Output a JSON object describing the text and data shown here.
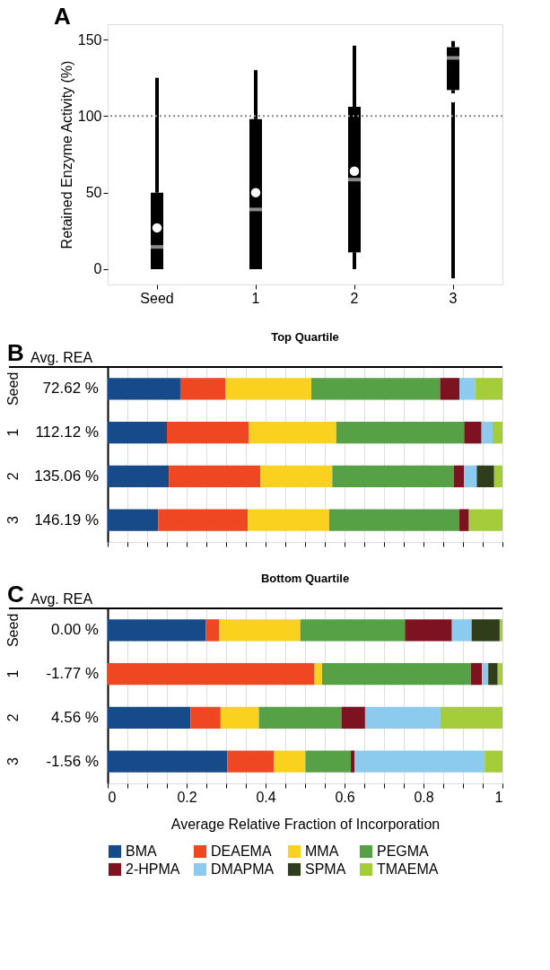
{
  "chart_data": [
    {
      "type": "box",
      "categories": [
        "Seed",
        "1",
        "2",
        "3"
      ],
      "ylabel": "Retained Enzyme Activity (%)",
      "ylim": [
        -10,
        160
      ],
      "yticks": [
        0,
        50,
        100,
        150
      ],
      "grid": false,
      "annotations": [
        "A"
      ],
      "ref_lines": [
        {
          "axis": "y",
          "value": 100,
          "line_style": "dotted",
          "color": "#888888"
        }
      ],
      "series": [
        {
          "color": "#000000",
          "boxes": [
            {
              "low": 0,
              "q1": 0,
              "median": 14.5,
              "q3": 50,
              "high": 125,
              "mean": 27
            },
            {
              "low": 0,
              "q1": 0,
              "median": 39,
              "q3": 98,
              "high": 130,
              "mean": 50
            },
            {
              "low": 0,
              "q1": 11,
              "median": 58.5,
              "q3": 106,
              "high": 146,
              "mean": 64
            },
            {
              "low": -6,
              "q1": 117,
              "median": 138,
              "q3": 145,
              "high": 149,
              "mean": 112
            }
          ]
        }
      ]
    },
    {
      "type": "bar",
      "orientation": "horizontal",
      "stacked": true,
      "title": "Top Quartile",
      "categories": [
        "Seed",
        "1",
        "2",
        "3"
      ],
      "xlim": [
        0,
        1
      ],
      "xticks": [
        0,
        {
          "value": 0.05,
          "label": null
        },
        {
          "value": 0.1,
          "label": null
        },
        {
          "value": 0.15,
          "label": null
        },
        {
          "value": 0.2,
          "label": null
        },
        {
          "value": 0.25,
          "label": null
        },
        {
          "value": 0.3,
          "label": null
        },
        {
          "value": 0.35,
          "label": null
        },
        {
          "value": 0.4,
          "label": null
        },
        {
          "value": 0.45,
          "label": null
        },
        {
          "value": 0.5,
          "label": null
        },
        {
          "value": 0.55,
          "label": null
        },
        {
          "value": 0.6,
          "label": null
        },
        {
          "value": 0.65,
          "label": null
        },
        {
          "value": 0.7,
          "label": null
        },
        {
          "value": 0.75,
          "label": null
        },
        {
          "value": 0.8,
          "label": null
        },
        {
          "value": 0.85,
          "label": null
        },
        {
          "value": 0.9,
          "label": null
        },
        {
          "value": 0.95,
          "label": null
        },
        {
          "value": 1,
          "label": null
        }
      ],
      "tick_labels": "y",
      "grid": "x",
      "legend": "bottom",
      "annotations": [
        "B",
        "Avg. REA",
        "72.62 %",
        "112.12 %",
        "135.06 %",
        "146.19 %"
      ],
      "series": [
        {
          "name": "BMA",
          "color": "#174a88",
          "values": [
            0.184,
            0.15,
            0.155,
            0.128
          ]
        },
        {
          "name": "DEAEMA",
          "color": "#ee4722",
          "values": [
            0.114,
            0.207,
            0.232,
            0.227
          ]
        },
        {
          "name": "MMA",
          "color": "#fad11e",
          "values": [
            0.218,
            0.222,
            0.182,
            0.206
          ]
        },
        {
          "name": "PEGMA",
          "color": "#56a046",
          "values": [
            0.326,
            0.324,
            0.308,
            0.33
          ]
        },
        {
          "name": "2-HPMA",
          "color": "#7d1321",
          "values": [
            0.049,
            0.044,
            0.026,
            0.024
          ]
        },
        {
          "name": "DMAPMA",
          "color": "#8ccbee",
          "values": [
            0.04,
            0.028,
            0.032,
            0
          ]
        },
        {
          "name": "SPMA",
          "color": "#2f3d1a",
          "values": [
            0,
            0,
            0.044,
            0
          ]
        },
        {
          "name": "TMAEMA",
          "color": "#a5cd3a",
          "values": [
            0.069,
            0.025,
            0.021,
            0.085
          ]
        }
      ]
    },
    {
      "type": "bar",
      "orientation": "horizontal",
      "stacked": true,
      "title": "Bottom Quartile",
      "categories": [
        "Seed",
        "1",
        "2",
        "3"
      ],
      "xlim": [
        0,
        1
      ],
      "xlabel": "Average Relative Fraction of Incorporation",
      "xticks": [
        0,
        {
          "value": 0.05,
          "label": null
        },
        {
          "value": 0.1,
          "label": null
        },
        {
          "value": 0.15,
          "label": null
        },
        0.2,
        {
          "value": 0.25,
          "label": null
        },
        {
          "value": 0.3,
          "label": null
        },
        {
          "value": 0.35,
          "label": null
        },
        0.4,
        {
          "value": 0.45,
          "label": null
        },
        {
          "value": 0.5,
          "label": null
        },
        {
          "value": 0.55,
          "label": null
        },
        0.6,
        {
          "value": 0.65,
          "label": null
        },
        {
          "value": 0.7,
          "label": null
        },
        {
          "value": 0.75,
          "label": null
        },
        0.8,
        {
          "value": 0.85,
          "label": null
        },
        {
          "value": 0.9,
          "label": null
        },
        {
          "value": 0.95,
          "label": null
        },
        1
      ],
      "grid": "x",
      "legend": "bottom",
      "annotations": [
        "C",
        "Avg. REA",
        "0.00 %",
        "-1.77 %",
        "4.56 %",
        "-1.56 %"
      ],
      "series": [
        {
          "name": "BMA",
          "color": "#174a88",
          "values": [
            0.249,
            0,
            0.21,
            0.303
          ]
        },
        {
          "name": "DEAEMA",
          "color": "#ee4722",
          "values": [
            0.034,
            0.524,
            0.076,
            0.118
          ]
        },
        {
          "name": "MMA",
          "color": "#fad11e",
          "values": [
            0.205,
            0.019,
            0.097,
            0.08
          ]
        },
        {
          "name": "PEGMA",
          "color": "#56a046",
          "values": [
            0.265,
            0.377,
            0.209,
            0.115
          ]
        },
        {
          "name": "2-HPMA",
          "color": "#7d1321",
          "values": [
            0.119,
            0.028,
            0.06,
            0.009
          ]
        },
        {
          "name": "DMAPMA",
          "color": "#8ccbee",
          "values": [
            0.05,
            0.016,
            0.191,
            0.33
          ]
        },
        {
          "name": "SPMA",
          "color": "#2f3d1a",
          "values": [
            0.071,
            0.024,
            0,
            0
          ]
        },
        {
          "name": "TMAEMA",
          "color": "#a5cd3a",
          "values": [
            0.007,
            0.012,
            0.157,
            0.045
          ]
        }
      ]
    }
  ]
}
